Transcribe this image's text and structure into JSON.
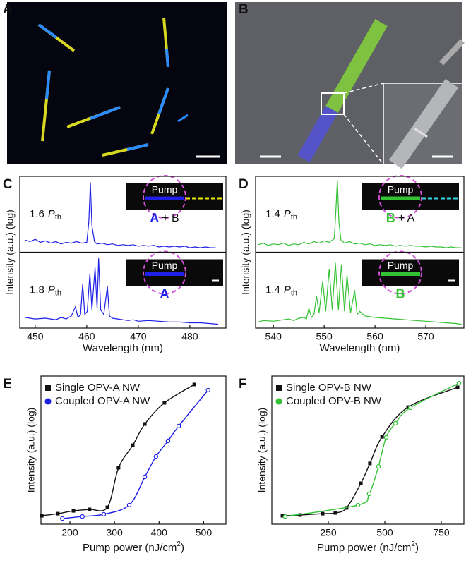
{
  "images": [
    {
      "panel": "A"
    },
    {
      "panel": "B"
    }
  ],
  "chart_data": [
    {
      "type": "line",
      "panel": "C",
      "x_label": "Wavelength (nm)",
      "y_label": "Intensity (a.u.) (log)",
      "xlim": [
        447,
        487
      ],
      "xticks": [
        450,
        460,
        470,
        480
      ],
      "subplots": [
        {
          "ylim": [
            0,
            100
          ],
          "annotation": {
            "value": "1.6",
            "symbol": "P",
            "subscript": "th"
          },
          "inset": {
            "pump": "Pump",
            "labels": [
              "A",
              "+ B"
            ],
            "partner_color": "#e6e600"
          },
          "series": [
            {
              "color": "#1f1fe6",
              "x": [
                448,
                449,
                450,
                451,
                452,
                453,
                454,
                455,
                456,
                457,
                458,
                459,
                460,
                460.4,
                460.7,
                461,
                461.5,
                462,
                463,
                464,
                465,
                466,
                467,
                468,
                469,
                470,
                471,
                472,
                473,
                474,
                475,
                476,
                477,
                478,
                479,
                480,
                481,
                482,
                483,
                484,
                485
              ],
              "values": [
                16,
                14,
                17,
                13,
                15,
                12,
                14,
                11,
                13,
                12,
                14,
                12,
                13,
                40,
                92,
                35,
                14,
                11,
                12,
                10,
                11,
                9,
                10,
                9,
                10,
                8,
                9,
                8,
                9,
                7,
                8,
                7,
                8,
                7,
                8,
                6,
                7,
                6,
                7,
                6,
                6
              ]
            }
          ]
        },
        {
          "ylim": [
            0,
            100
          ],
          "annotation": {
            "value": "1.8",
            "symbol": "P",
            "subscript": "th"
          },
          "inset": {
            "pump": "Pump",
            "labels": [
              "A"
            ]
          },
          "series": [
            {
              "color": "#1f1fe6",
              "x": [
                448,
                450,
                452,
                454,
                455,
                456,
                457,
                457.8,
                458.3,
                458.8,
                459.2,
                459.6,
                460.1,
                460.6,
                461,
                461.6,
                462,
                462.3,
                462.7,
                463.3,
                464,
                464.4,
                465,
                466,
                467,
                468,
                469,
                470,
                472,
                474,
                476,
                478,
                480,
                482,
                484,
                485.5
              ],
              "values": [
                14,
                12,
                13,
                11,
                14,
                12,
                16,
                28,
                14,
                18,
                58,
                18,
                22,
                72,
                24,
                80,
                26,
                92,
                24,
                18,
                55,
                16,
                13,
                12,
                11,
                10,
                11,
                9,
                10,
                9,
                8,
                8,
                7,
                7,
                6,
                5
              ]
            }
          ]
        }
      ]
    },
    {
      "type": "line",
      "panel": "D",
      "x_label": "Wavelength (nm)",
      "y_label": "Intensity (a.u.) (log)",
      "xlim": [
        536.5,
        577.5
      ],
      "xticks": [
        540,
        550,
        560,
        570
      ],
      "subplots": [
        {
          "ylim": [
            0,
            100
          ],
          "annotation": {
            "value": "1.4",
            "symbol": "P",
            "subscript": "th"
          },
          "inset": {
            "pump": "Pump",
            "labels": [
              "B",
              "+ A"
            ],
            "partner_color": "#33d6e6"
          },
          "series": [
            {
              "color": "#33c233",
              "x": [
                537,
                538,
                539,
                540,
                541,
                542,
                543,
                544,
                545,
                546,
                547,
                548,
                549,
                550,
                551,
                552,
                552.3,
                552.6,
                552.9,
                553.3,
                554,
                555,
                556,
                557,
                558,
                559,
                560,
                561,
                562,
                563,
                564,
                565,
                566,
                567,
                568,
                569,
                570,
                571,
                572,
                573,
                574,
                575,
                576,
                577
              ],
              "values": [
                10,
                12,
                9,
                11,
                10,
                12,
                9,
                11,
                10,
                13,
                11,
                14,
                12,
                15,
                13,
                18,
                55,
                95,
                40,
                16,
                12,
                14,
                11,
                12,
                10,
                11,
                9,
                10,
                9,
                10,
                8,
                9,
                8,
                9,
                8,
                8,
                7,
                8,
                7,
                7,
                6,
                7,
                6,
                6
              ]
            }
          ]
        },
        {
          "ylim": [
            0,
            100
          ],
          "annotation": {
            "value": "1.4",
            "symbol": "P",
            "subscript": "th"
          },
          "inset": {
            "pump": "Pump",
            "labels": [
              "B"
            ]
          },
          "series": [
            {
              "color": "#33c233",
              "x": [
                537,
                538,
                540,
                542,
                543,
                544,
                545,
                546,
                546.5,
                547,
                547.5,
                548,
                548.5,
                549,
                549.7,
                550.3,
                551,
                551.6,
                552.2,
                552.8,
                553.4,
                554,
                554.5,
                555.2,
                556,
                556.5,
                557,
                558,
                559,
                560,
                562,
                564,
                566,
                568,
                570,
                572,
                574,
                576,
                577
              ],
              "values": [
                8,
                10,
                9,
                11,
                12,
                10,
                13,
                14,
                12,
                26,
                14,
                18,
                42,
                20,
                62,
                22,
                78,
                24,
                86,
                24,
                84,
                22,
                70,
                20,
                50,
                18,
                22,
                16,
                15,
                14,
                13,
                12,
                11,
                10,
                9,
                8,
                7,
                6,
                5
              ]
            }
          ]
        }
      ]
    },
    {
      "type": "scatter",
      "panel": "E",
      "x_label": [
        "Pump power (nJ/cm",
        "2",
        ")"
      ],
      "y_label": "Intensity (a.u.) (log)",
      "xlim": [
        135,
        550
      ],
      "xticks": [
        200,
        300,
        400,
        500
      ],
      "ylim": [
        0,
        100
      ],
      "series": [
        {
          "name": "Single OPV-A NW",
          "color": "#111111",
          "marker": "square",
          "x": [
            137,
            173,
            208,
            244,
            284,
            309,
            341,
            368,
            412,
            479
          ],
          "values": [
            5.7,
            7.1,
            9.0,
            10.0,
            11.4,
            38.1,
            53.3,
            67.6,
            81.9,
            94.3
          ]
        },
        {
          "name": "Coupled OPV-A NW",
          "color": "#1f1fe6",
          "marker": "circle",
          "x": [
            183,
            228,
            276,
            333,
            368,
            393,
            420,
            444,
            510
          ],
          "values": [
            3.8,
            5.2,
            6.7,
            12.9,
            31.9,
            45.7,
            56.2,
            66.2,
            90.5
          ]
        }
      ]
    },
    {
      "type": "scatter",
      "panel": "F",
      "x_label": [
        "Pump power (nJ/cm",
        "2",
        ")"
      ],
      "y_label": "Intensity (a.u.) (log)",
      "xlim": [
        0,
        850
      ],
      "xticks": [
        250,
        500,
        750
      ],
      "ylim": [
        0,
        100
      ],
      "series": [
        {
          "name": "Single OPV-B NW",
          "color": "#111111",
          "marker": "square",
          "x": [
            47,
            125,
            225,
            281,
            331,
            394,
            434,
            488,
            603,
            822
          ],
          "values": [
            5.7,
            6.2,
            7.1,
            7.6,
            11.0,
            27.6,
            41.0,
            59.0,
            79.0,
            92.4
          ]
        },
        {
          "name": "Coupled OPV-B NW",
          "color": "#33c233",
          "marker": "circle",
          "x": [
            59,
            381,
            431,
            472,
            506,
            547,
            613,
            828
          ],
          "values": [
            5.2,
            12.9,
            20.5,
            39.0,
            58.6,
            68.1,
            78.6,
            95.2
          ]
        }
      ]
    }
  ]
}
